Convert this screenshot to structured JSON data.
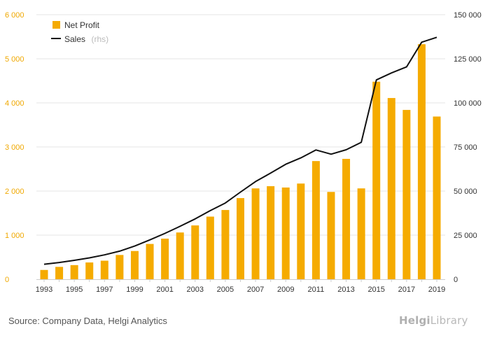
{
  "chart_data": {
    "type": "bar",
    "years": [
      1993,
      1994,
      1995,
      1996,
      1997,
      1998,
      1999,
      2000,
      2001,
      2002,
      2003,
      2004,
      2005,
      2006,
      2007,
      2008,
      2009,
      2010,
      2011,
      2012,
      2013,
      2014,
      2015,
      2016,
      2017,
      2018,
      2019
    ],
    "series": [
      {
        "name": "Net Profit",
        "type": "bar",
        "axis": "left",
        "color": "#f5ab00",
        "values": [
          210,
          280,
          320,
          380,
          420,
          550,
          640,
          800,
          920,
          1060,
          1220,
          1420,
          1570,
          1840,
          2060,
          2110,
          2080,
          2170,
          2680,
          1980,
          2730,
          2060,
          4480,
          4110,
          3840,
          5330,
          3690
        ]
      },
      {
        "name": "Sales",
        "name_note": "(rhs)",
        "type": "line",
        "axis": "right",
        "color": "#111111",
        "values": [
          8500,
          9500,
          10700,
          12100,
          13800,
          15900,
          18800,
          22300,
          26000,
          30000,
          34200,
          38900,
          43200,
          49400,
          55400,
          60200,
          65200,
          68800,
          73300,
          70900,
          73400,
          77600,
          113000,
          117000,
          120400,
          134400,
          137200
        ]
      }
    ],
    "y_left": {
      "min": 0,
      "max": 6000,
      "ticks": [
        "0",
        "1 000",
        "2 000",
        "3 000",
        "4 000",
        "5 000",
        "6 000"
      ],
      "tick_values": [
        0,
        1000,
        2000,
        3000,
        4000,
        5000,
        6000
      ]
    },
    "y_right": {
      "min": 0,
      "max": 150000,
      "ticks": [
        "0",
        "25 000",
        "50 000",
        "75 000",
        "100 000",
        "125 000",
        "150 000"
      ],
      "tick_values": [
        0,
        25000,
        50000,
        75000,
        100000,
        125000,
        150000
      ]
    },
    "x_tick_labels": [
      "1993",
      "1995",
      "1997",
      "1999",
      "2001",
      "2003",
      "2005",
      "2007",
      "2009",
      "2011",
      "2013",
      "2015",
      "2017",
      "2019"
    ],
    "grid": "horizontal",
    "legend_position": "top-left"
  },
  "footer": {
    "source": "Source: Company Data, Helgi Analytics",
    "logo_prefix": "Helgi",
    "logo_suffix": "Library"
  }
}
